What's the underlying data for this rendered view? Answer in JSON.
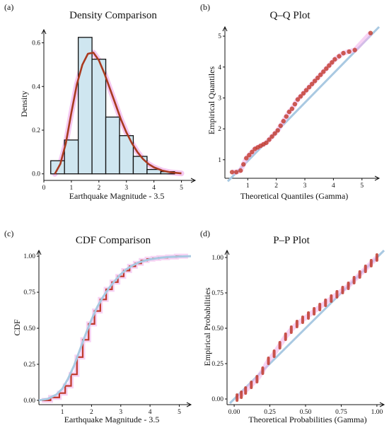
{
  "panels": [
    {
      "label": "(a)",
      "title": "Density Comparison",
      "xlabel": "Earthquake Magnitude - 3.5",
      "ylabel": "Density"
    },
    {
      "label": "(b)",
      "title": "Q–Q Plot",
      "xlabel": "Theoretical Quantiles (Gamma)",
      "ylabel": "Empirical Quantiles"
    },
    {
      "label": "(c)",
      "title": "CDF Comparison",
      "xlabel": "Earthquake Magnitude - 3.5",
      "ylabel": "CDF"
    },
    {
      "label": "(d)",
      "title": "P–P Plot",
      "xlabel": "Theoretical Probabilities (Gamma)",
      "ylabel": "Empirical Probabilities"
    }
  ],
  "colors": {
    "hist_fill": "#cfe6f0",
    "hist_edge": "#111111",
    "fit_curve": "#a93a1f",
    "points": "#c0392b",
    "reference_line": "#a9c9e2",
    "highlight": "#f1b6ec"
  },
  "chart_data": [
    {
      "type": "bar",
      "panel": "a",
      "bins": [
        {
          "x0": 0.25,
          "x1": 0.75,
          "y": 0.06
        },
        {
          "x0": 0.75,
          "x1": 1.25,
          "y": 0.155
        },
        {
          "x0": 1.25,
          "x1": 1.75,
          "y": 0.625
        },
        {
          "x0": 1.75,
          "x1": 2.25,
          "y": 0.525
        },
        {
          "x0": 2.25,
          "x1": 2.75,
          "y": 0.26
        },
        {
          "x0": 2.75,
          "x1": 3.25,
          "y": 0.175
        },
        {
          "x0": 3.25,
          "x1": 3.75,
          "y": 0.08
        },
        {
          "x0": 3.75,
          "x1": 4.25,
          "y": 0.02
        },
        {
          "x0": 4.25,
          "x1": 4.75,
          "y": 0.01
        }
      ],
      "fit_curve": {
        "x": [
          0.4,
          0.6,
          0.8,
          1.0,
          1.2,
          1.4,
          1.6,
          1.8,
          2.0,
          2.2,
          2.4,
          2.6,
          2.8,
          3.0,
          3.2,
          3.4,
          3.6,
          3.8,
          4.0,
          4.3,
          4.6,
          5.0
        ],
        "y": [
          0.0,
          0.045,
          0.14,
          0.28,
          0.41,
          0.5,
          0.55,
          0.555,
          0.52,
          0.46,
          0.39,
          0.32,
          0.25,
          0.19,
          0.14,
          0.1,
          0.068,
          0.045,
          0.03,
          0.015,
          0.007,
          0.002
        ]
      },
      "xticks": [
        "0",
        "1",
        "2",
        "3",
        "4",
        "5"
      ],
      "yticks": [
        "0.0",
        "0.2",
        "0.4",
        "0.6"
      ],
      "xlim": [
        0,
        5.5
      ],
      "ylim": [
        -0.03,
        0.66
      ]
    },
    {
      "type": "scatter",
      "panel": "b",
      "points": {
        "x": [
          0.45,
          0.6,
          0.75,
          0.85,
          0.95,
          1.05,
          1.15,
          1.25,
          1.35,
          1.45,
          1.55,
          1.65,
          1.75,
          1.85,
          1.95,
          2.05,
          2.15,
          2.25,
          2.35,
          2.45,
          2.55,
          2.65,
          2.75,
          2.85,
          2.95,
          3.05,
          3.15,
          3.25,
          3.35,
          3.45,
          3.55,
          3.65,
          3.75,
          3.85,
          3.95,
          4.05,
          4.2,
          4.35,
          4.55,
          4.75,
          5.3
        ],
        "y": [
          0.6,
          0.6,
          0.65,
          0.85,
          1.05,
          1.15,
          1.25,
          1.35,
          1.4,
          1.45,
          1.5,
          1.55,
          1.65,
          1.75,
          1.85,
          1.95,
          2.1,
          2.25,
          2.4,
          2.55,
          2.65,
          2.8,
          2.95,
          3.05,
          3.15,
          3.25,
          3.35,
          3.45,
          3.55,
          3.65,
          3.75,
          3.85,
          3.95,
          4.05,
          4.15,
          4.25,
          4.35,
          4.45,
          4.5,
          4.55,
          5.1
        ]
      },
      "reference_line": {
        "x": [
          0.3,
          5.6
        ],
        "y": [
          0.3,
          5.3
        ]
      },
      "xticks": [
        "1",
        "2",
        "3",
        "4",
        "5"
      ],
      "yticks": [
        "1",
        "2",
        "3",
        "4",
        "5"
      ],
      "xlim": [
        0.2,
        5.6
      ],
      "ylim": [
        0.4,
        5.3
      ]
    },
    {
      "type": "line",
      "panel": "c",
      "empirical": {
        "x": [
          0.3,
          0.6,
          0.9,
          1.1,
          1.3,
          1.5,
          1.7,
          1.9,
          2.1,
          2.3,
          2.5,
          2.7,
          2.9,
          3.1,
          3.3,
          3.5,
          3.7,
          3.9,
          4.1,
          4.3,
          4.6,
          4.9,
          5.3
        ],
        "y": [
          0.0,
          0.02,
          0.05,
          0.1,
          0.18,
          0.3,
          0.42,
          0.53,
          0.62,
          0.7,
          0.77,
          0.82,
          0.86,
          0.9,
          0.93,
          0.95,
          0.97,
          0.98,
          0.985,
          0.99,
          0.995,
          1.0,
          1.0
        ]
      },
      "theoretical": {
        "x": [
          0.2,
          0.5,
          0.8,
          1.0,
          1.2,
          1.4,
          1.6,
          1.8,
          2.0,
          2.2,
          2.4,
          2.6,
          2.8,
          3.0,
          3.2,
          3.4,
          3.6,
          3.8,
          4.0,
          4.3,
          4.6,
          5.0,
          5.4
        ],
        "y": [
          0.0,
          0.01,
          0.04,
          0.08,
          0.15,
          0.24,
          0.35,
          0.46,
          0.56,
          0.65,
          0.72,
          0.78,
          0.83,
          0.875,
          0.91,
          0.935,
          0.955,
          0.968,
          0.978,
          0.988,
          0.994,
          0.998,
          1.0
        ]
      },
      "xticks": [
        "1",
        "2",
        "3",
        "4",
        "5"
      ],
      "yticks": [
        "0.00",
        "0.25",
        "0.50",
        "0.75",
        "1.00"
      ],
      "xlim": [
        0.2,
        5.4
      ],
      "ylim": [
        -0.03,
        1.04
      ]
    },
    {
      "type": "scatter",
      "panel": "d",
      "points": {
        "x": [
          0.02,
          0.05,
          0.08,
          0.12,
          0.16,
          0.2,
          0.24,
          0.28,
          0.32,
          0.36,
          0.4,
          0.44,
          0.48,
          0.52,
          0.56,
          0.6,
          0.64,
          0.68,
          0.72,
          0.76,
          0.8,
          0.84,
          0.88,
          0.92,
          0.96,
          1.0
        ],
        "y": [
          0.01,
          0.03,
          0.06,
          0.1,
          0.14,
          0.2,
          0.27,
          0.32,
          0.38,
          0.44,
          0.49,
          0.53,
          0.56,
          0.59,
          0.62,
          0.65,
          0.68,
          0.71,
          0.74,
          0.77,
          0.8,
          0.84,
          0.88,
          0.92,
          0.96,
          1.0
        ]
      },
      "reference_line": {
        "x": [
          -0.03,
          1.05
        ],
        "y": [
          -0.03,
          1.05
        ]
      },
      "xticks": [
        "0.00",
        "0.25",
        "0.50",
        "0.75",
        "1.00"
      ],
      "yticks": [
        "0.00",
        "0.25",
        "0.50",
        "0.75",
        "1.00"
      ],
      "xlim": [
        -0.05,
        1.05
      ],
      "ylim": [
        -0.04,
        1.05
      ]
    }
  ]
}
